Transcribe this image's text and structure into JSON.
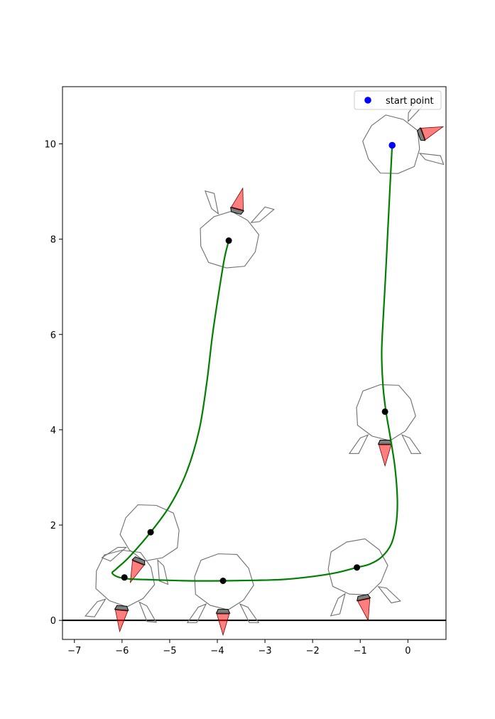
{
  "chart_data": {
    "type": "scatter",
    "title": "",
    "xlabel": "",
    "ylabel": "",
    "xlim": [
      -7.25,
      0.8
    ],
    "ylim": [
      -0.4,
      11.2
    ],
    "xticks": [
      -7,
      -6,
      -5,
      -4,
      -3,
      -2,
      -1,
      0
    ],
    "yticks": [
      0,
      2,
      4,
      6,
      8,
      10
    ],
    "xtick_labels": [
      "−7",
      "−6",
      "−5",
      "−4",
      "−3",
      "−2",
      "−1",
      "0"
    ],
    "ytick_labels": [
      "0",
      "2",
      "4",
      "6",
      "8",
      "10"
    ],
    "grid": false,
    "legend": {
      "position": "top-right",
      "entries": [
        {
          "label": "start point",
          "color": "#0000ff",
          "marker": "circle"
        }
      ]
    },
    "ground_line": {
      "y": 0,
      "color": "#000000"
    },
    "trajectory": {
      "color": "#008000",
      "points": [
        [
          -0.33,
          9.97
        ],
        [
          -0.37,
          9.2
        ],
        [
          -0.42,
          8.2
        ],
        [
          -0.47,
          7.2
        ],
        [
          -0.52,
          6.3
        ],
        [
          -0.55,
          5.6
        ],
        [
          -0.52,
          4.9
        ],
        [
          -0.46,
          4.38
        ],
        [
          -0.37,
          3.85
        ],
        [
          -0.27,
          3.2
        ],
        [
          -0.22,
          2.5
        ],
        [
          -0.25,
          2.0
        ],
        [
          -0.35,
          1.6
        ],
        [
          -0.55,
          1.33
        ],
        [
          -0.8,
          1.18
        ],
        [
          -1.07,
          1.11
        ],
        [
          -1.5,
          1.0
        ],
        [
          -2.0,
          0.92
        ],
        [
          -2.6,
          0.86
        ],
        [
          -3.2,
          0.84
        ],
        [
          -3.88,
          0.83
        ],
        [
          -4.6,
          0.83
        ],
        [
          -5.3,
          0.85
        ],
        [
          -5.95,
          0.88
        ],
        [
          -6.2,
          0.98
        ],
        [
          -6.12,
          1.08
        ],
        [
          -5.85,
          1.33
        ],
        [
          -5.4,
          1.85
        ],
        [
          -5.0,
          2.4
        ],
        [
          -4.65,
          3.1
        ],
        [
          -4.38,
          4.0
        ],
        [
          -4.22,
          5.0
        ],
        [
          -4.1,
          6.0
        ],
        [
          -3.95,
          7.0
        ],
        [
          -3.85,
          7.6
        ],
        [
          -3.76,
          7.97
        ]
      ]
    },
    "start_point": {
      "x": -0.33,
      "y": 9.97,
      "color": "#0000ff",
      "label": "start point"
    },
    "checkpoints": [
      {
        "x": -3.76,
        "y": 7.97,
        "angle": 165
      },
      {
        "x": -0.48,
        "y": 4.38,
        "angle": 0
      },
      {
        "x": -1.07,
        "y": 1.11,
        "angle": 12
      },
      {
        "x": -3.88,
        "y": 0.83,
        "angle": 0
      },
      {
        "x": -5.95,
        "y": 0.9,
        "angle": -5
      },
      {
        "x": -5.4,
        "y": 1.85,
        "angle": -22
      }
    ],
    "start_robot": {
      "x": -0.33,
      "y": 9.97,
      "angle": 110
    },
    "robot_colors": {
      "body_edge": "#6e6e6e",
      "flame": "#ff0000",
      "nozzle": "#000000"
    }
  }
}
